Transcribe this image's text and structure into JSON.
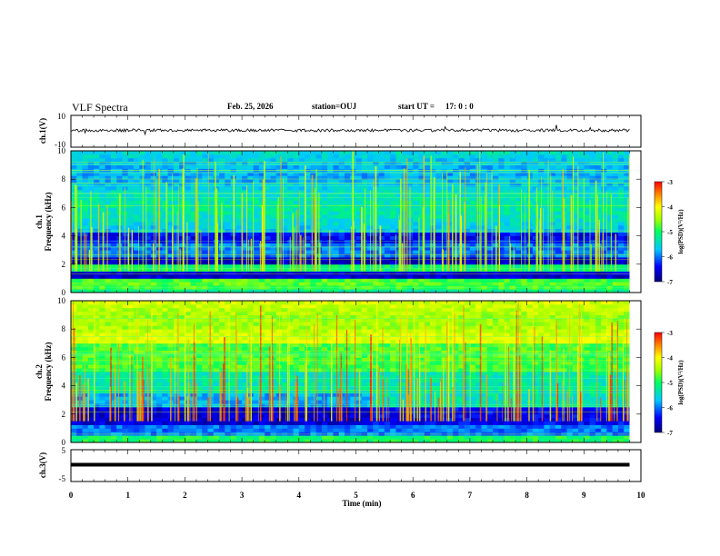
{
  "header": {
    "title": "VLF Spectra",
    "date": "Feb. 25, 2026",
    "station": "station=OUJ",
    "start_label": "start  UT =",
    "start_time": "17: 0  : 0"
  },
  "chart_data": [
    {
      "type": "line",
      "panel": "ch1-waveform",
      "ylabel": "ch.1(V)",
      "ylim": [
        -10,
        10
      ],
      "yticks": [
        "10",
        "-10"
      ],
      "x": [
        0,
        9.8
      ],
      "description_level": 0,
      "amplitude_approx": 1.0,
      "color": "#000000"
    },
    {
      "type": "heatmap",
      "panel": "ch1-spectrogram",
      "ylabel": "ch.1\nFrequency (kHz)",
      "ylabel_line1": "ch.1",
      "ylabel_line2": "Frequency (kHz)",
      "ylim": [
        0,
        10
      ],
      "yticks": [
        "0",
        "2",
        "4",
        "6",
        "8",
        "10"
      ],
      "xlim": [
        0,
        9.8
      ],
      "colorbar": {
        "label": "log(PSD)(V²/Hz)",
        "range": [
          -7,
          -3
        ],
        "ticks": [
          "-3",
          "-4",
          "-5",
          "-6",
          "-7"
        ]
      }
    },
    {
      "type": "heatmap",
      "panel": "ch2-spectrogram",
      "ylabel_line1": "ch.2",
      "ylabel_line2": "Frequency (kHz)",
      "ylim": [
        0,
        10
      ],
      "yticks": [
        "0",
        "2",
        "4",
        "6",
        "8",
        "10"
      ],
      "xlim": [
        0,
        9.8
      ],
      "colorbar": {
        "label": "log(PSD)(V²/Hz)",
        "range": [
          -7,
          -3
        ],
        "ticks": [
          "-3",
          "-4",
          "-5",
          "-6",
          "-7"
        ]
      }
    },
    {
      "type": "line",
      "panel": "ch3-waveform",
      "ylabel": "ch.3(V)",
      "ylim": [
        -5,
        5
      ],
      "yticks": [
        "5",
        "-5"
      ],
      "x": [
        0,
        9.8
      ],
      "level": 0,
      "color": "#000000"
    }
  ],
  "xaxis": {
    "label": "Time (min)",
    "range": [
      0,
      10
    ],
    "ticks": [
      "0",
      "1",
      "2",
      "3",
      "4",
      "5",
      "6",
      "7",
      "8",
      "9",
      "10"
    ]
  },
  "colors": {
    "plot_background": "#ffffff",
    "axis": "#000000"
  }
}
